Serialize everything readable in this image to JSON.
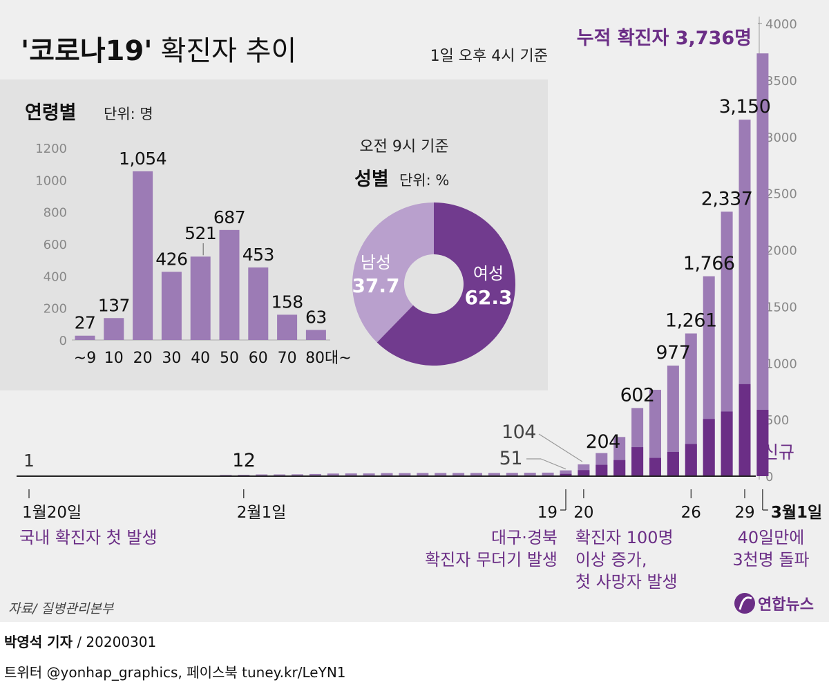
{
  "title": {
    "quoted": "'코로나19'",
    "rest": "확진자 추이",
    "basis": "1일 오후 4시 기준"
  },
  "colors": {
    "background": "#efefef",
    "panel": "#e2e2e2",
    "cumulative_bar": "#9c7bb5",
    "new_bar": "#6b2e86",
    "female_slice": "#713b8e",
    "male_slice": "#b9a0cd",
    "annotation_text": "#6b2e86",
    "axis_text": "#888888"
  },
  "chart_data": [
    {
      "id": "cumulative",
      "type": "bar",
      "title": "누적 확진자 3,736명",
      "new_label": "신규",
      "ylim": [
        0,
        4000
      ],
      "yticks": [
        "4000",
        "3500",
        "3000",
        "2500",
        "2000",
        "1500",
        "1000",
        "500",
        "0"
      ],
      "first_day_label": "1",
      "dates": [
        "1/20",
        "1/21",
        "1/22",
        "1/23",
        "1/24",
        "1/25",
        "1/26",
        "1/27",
        "1/28",
        "1/29",
        "1/30",
        "1/31",
        "2/1",
        "2/2",
        "2/3",
        "2/4",
        "2/5",
        "2/6",
        "2/7",
        "2/8",
        "2/9",
        "2/10",
        "2/11",
        "2/12",
        "2/13",
        "2/14",
        "2/15",
        "2/16",
        "2/17",
        "2/18",
        "2/19",
        "2/20",
        "2/21",
        "2/22",
        "2/23",
        "2/24",
        "2/25",
        "2/26",
        "2/27",
        "2/28",
        "2/29",
        "3/1"
      ],
      "cumulative": [
        1,
        1,
        1,
        1,
        2,
        2,
        3,
        4,
        4,
        4,
        6,
        11,
        12,
        15,
        15,
        16,
        19,
        23,
        24,
        24,
        27,
        27,
        28,
        28,
        28,
        28,
        28,
        29,
        30,
        31,
        51,
        104,
        204,
        346,
        602,
        763,
        977,
        1261,
        1766,
        2337,
        3150,
        3736
      ],
      "new": [
        1,
        0,
        0,
        0,
        1,
        0,
        1,
        1,
        0,
        0,
        2,
        5,
        1,
        3,
        0,
        1,
        3,
        4,
        1,
        0,
        3,
        0,
        1,
        0,
        0,
        0,
        0,
        1,
        1,
        1,
        20,
        53,
        100,
        142,
        256,
        161,
        214,
        284,
        505,
        571,
        813,
        586
      ],
      "value_labels": [
        {
          "index": 12,
          "text": "12"
        },
        {
          "index": 30,
          "text": "51"
        },
        {
          "index": 31,
          "text": "104"
        },
        {
          "index": 32,
          "text": "204"
        },
        {
          "index": 34,
          "text": "602"
        },
        {
          "index": 36,
          "text": "977"
        },
        {
          "index": 37,
          "text": "1,261"
        },
        {
          "index": 38,
          "text": "1,766"
        },
        {
          "index": 39,
          "text": "2,337"
        },
        {
          "index": 40,
          "text": "3,150"
        }
      ],
      "x_ticks": [
        {
          "index": 0,
          "label": "1월20일",
          "bold": false
        },
        {
          "index": 12,
          "label": "2월1일",
          "bold": false
        },
        {
          "index": 30,
          "label": "19",
          "bold": false
        },
        {
          "index": 31,
          "label": "20",
          "bold": false
        },
        {
          "index": 37,
          "label": "26",
          "bold": false
        },
        {
          "index": 40,
          "label": "29",
          "bold": false
        },
        {
          "index": 41,
          "label": "3월1일",
          "bold": true
        }
      ],
      "annotations": [
        {
          "index": 0,
          "lines": [
            "국내 확진자 첫 발생"
          ],
          "align": "start"
        },
        {
          "index": 30,
          "lines": [
            "대구·경북",
            "확진자 무더기 발생"
          ],
          "align": "end"
        },
        {
          "index": 31,
          "lines": [
            "확진자 100명",
            "이상 증가,",
            "첫 사망자 발생"
          ],
          "align": "start"
        },
        {
          "index": 40,
          "lines": [
            "40일만에",
            "3천명 돌파"
          ],
          "align": "middle"
        }
      ]
    },
    {
      "id": "age",
      "type": "bar",
      "title": "연령별",
      "unit": "단위: 명",
      "categories": [
        "~9",
        "10",
        "20",
        "30",
        "40",
        "50",
        "60",
        "70",
        "80대~"
      ],
      "values": [
        27,
        137,
        1054,
        426,
        521,
        687,
        453,
        158,
        63
      ],
      "value_labels": [
        "27",
        "137",
        "1,054",
        "426",
        "521",
        "687",
        "453",
        "158",
        "63"
      ],
      "ylim": [
        0,
        1200
      ],
      "yticks": [
        "0",
        "200",
        "400",
        "600",
        "800",
        "1000",
        "1200"
      ]
    },
    {
      "id": "sex",
      "type": "pie",
      "title": "성별",
      "unit": "단위: %",
      "basis": "오전 9시 기준",
      "slices": [
        {
          "label": "여성",
          "value": 62.3,
          "value_label": "62.3"
        },
        {
          "label": "남성",
          "value": 37.7,
          "value_label": "37.7"
        }
      ]
    }
  ],
  "source": "자료/ 질병관리본부",
  "logo_text": "연합뉴스",
  "footer": {
    "reporter": "박영석 기자",
    "date": "/ 20200301",
    "social": "트위터 @yonhap_graphics, 페이스북 tuney.kr/LeYN1"
  }
}
